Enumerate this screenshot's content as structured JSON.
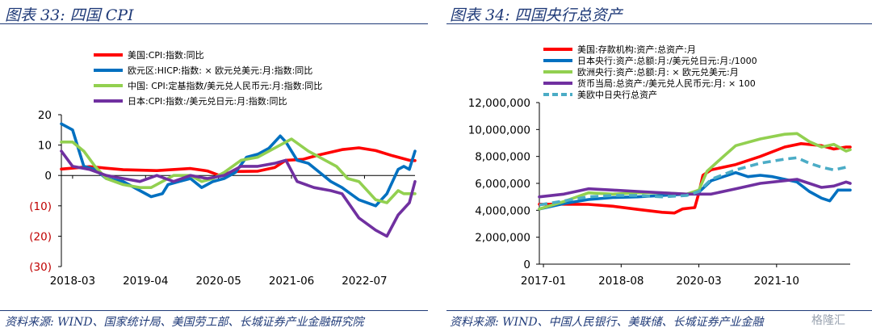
{
  "left_title": "图表 33:  四国 CPI",
  "right_title": "图表 34:  四国央行总资产",
  "left_source": "资料来源: WIND、国家统计局、美国劳工部、长城证券产业金融研究院",
  "right_source": "资料来源: WIND、中国人民银行、美联储、长城证券产业金融",
  "watermark": "格隆汇",
  "chart_data": [
    {
      "type": "line",
      "title": "图表 33:  四国 CPI",
      "x_tick_labels": [
        "2018-03",
        "2019-04",
        "2020-05",
        "2021-06",
        "2022-07"
      ],
      "x_range": [
        "2018-01",
        "2023-04"
      ],
      "ylim": [
        -30,
        20
      ],
      "y_ticks": [
        20,
        10,
        0,
        -10,
        -20,
        -30
      ],
      "y_tick_labels": [
        "20",
        "10",
        "0",
        "(10)",
        "(20)",
        "(30)"
      ],
      "grid": false,
      "legend_position": "top",
      "colors": {
        "us": "#ff0000",
        "eu": "#0070c0",
        "cn": "#92d050",
        "jp": "#7030a0"
      },
      "series": [
        {
          "name": "美国:CPI:指数:同比",
          "key": "us",
          "points": [
            [
              "2018-01",
              2.1
            ],
            [
              "2018-06",
              2.9
            ],
            [
              "2018-12",
              1.9
            ],
            [
              "2019-06",
              1.6
            ],
            [
              "2019-12",
              2.3
            ],
            [
              "2020-03",
              1.5
            ],
            [
              "2020-05",
              0.1
            ],
            [
              "2020-08",
              1.3
            ],
            [
              "2020-12",
              1.4
            ],
            [
              "2021-03",
              2.6
            ],
            [
              "2021-05",
              5.0
            ],
            [
              "2021-08",
              5.3
            ],
            [
              "2021-11",
              6.8
            ],
            [
              "2022-03",
              8.5
            ],
            [
              "2022-06",
              9.1
            ],
            [
              "2022-09",
              8.2
            ],
            [
              "2022-12",
              6.5
            ],
            [
              "2023-03",
              5.0
            ],
            [
              "2023-04",
              4.9
            ]
          ]
        },
        {
          "name": "欧元区:HICP:指数: × 欧元兑美元:月:指数:同比",
          "key": "eu",
          "points": [
            [
              "2018-01",
              17
            ],
            [
              "2018-03",
              15
            ],
            [
              "2018-05",
              3
            ],
            [
              "2018-07",
              2
            ],
            [
              "2018-09",
              -1
            ],
            [
              "2018-12",
              -2
            ],
            [
              "2019-03",
              -5
            ],
            [
              "2019-05",
              -7
            ],
            [
              "2019-07",
              -6
            ],
            [
              "2019-08",
              -3
            ],
            [
              "2019-10",
              -2
            ],
            [
              "2019-12",
              -1
            ],
            [
              "2020-02",
              -4
            ],
            [
              "2020-04",
              -2
            ],
            [
              "2020-06",
              -1
            ],
            [
              "2020-08",
              1
            ],
            [
              "2020-10",
              6
            ],
            [
              "2020-12",
              7
            ],
            [
              "2021-02",
              9
            ],
            [
              "2021-04",
              13
            ],
            [
              "2021-05",
              11
            ],
            [
              "2021-07",
              5
            ],
            [
              "2021-09",
              4
            ],
            [
              "2021-11",
              1
            ],
            [
              "2022-01",
              -2
            ],
            [
              "2022-03",
              -4
            ],
            [
              "2022-06",
              -8
            ],
            [
              "2022-09",
              -10
            ],
            [
              "2022-11",
              -6
            ],
            [
              "2023-01",
              2
            ],
            [
              "2023-02",
              3
            ],
            [
              "2023-03",
              2
            ],
            [
              "2023-04",
              8
            ]
          ]
        },
        {
          "name": "中国: CPI:定基指数/美元兑人民币元:月:指数:同比",
          "key": "cn",
          "points": [
            [
              "2018-01",
              11
            ],
            [
              "2018-03",
              11
            ],
            [
              "2018-05",
              8
            ],
            [
              "2018-07",
              3
            ],
            [
              "2018-09",
              -1
            ],
            [
              "2018-12",
              -3
            ],
            [
              "2019-03",
              -4
            ],
            [
              "2019-05",
              -4
            ],
            [
              "2019-07",
              -2
            ],
            [
              "2019-09",
              0
            ],
            [
              "2019-12",
              0
            ],
            [
              "2020-02",
              -2
            ],
            [
              "2020-04",
              -1
            ],
            [
              "2020-06",
              1
            ],
            [
              "2020-09",
              5
            ],
            [
              "2020-12",
              6
            ],
            [
              "2021-02",
              8
            ],
            [
              "2021-04",
              10
            ],
            [
              "2021-06",
              12
            ],
            [
              "2021-09",
              8
            ],
            [
              "2021-12",
              5
            ],
            [
              "2022-02",
              3
            ],
            [
              "2022-04",
              -1
            ],
            [
              "2022-06",
              -2
            ],
            [
              "2022-09",
              -8
            ],
            [
              "2022-11",
              -9
            ],
            [
              "2023-01",
              -5
            ],
            [
              "2023-02",
              -6
            ],
            [
              "2023-04",
              -6
            ]
          ]
        },
        {
          "name": "日本:CPI:指数:/美元兑日元:月:指数:同比",
          "key": "jp",
          "points": [
            [
              "2018-01",
              8
            ],
            [
              "2018-03",
              3
            ],
            [
              "2018-06",
              2
            ],
            [
              "2018-09",
              0
            ],
            [
              "2018-12",
              -1
            ],
            [
              "2019-03",
              -2
            ],
            [
              "2019-06",
              0
            ],
            [
              "2019-09",
              -2
            ],
            [
              "2019-12",
              0
            ],
            [
              "2020-03",
              -1
            ],
            [
              "2020-06",
              0
            ],
            [
              "2020-09",
              3
            ],
            [
              "2020-12",
              3
            ],
            [
              "2021-03",
              4
            ],
            [
              "2021-05",
              5
            ],
            [
              "2021-07",
              -2
            ],
            [
              "2021-10",
              -4
            ],
            [
              "2022-01",
              -5
            ],
            [
              "2022-03",
              -6
            ],
            [
              "2022-06",
              -14
            ],
            [
              "2022-09",
              -18
            ],
            [
              "2022-11",
              -20
            ],
            [
              "2023-01",
              -13
            ],
            [
              "2023-03",
              -9
            ],
            [
              "2023-04",
              -2
            ]
          ]
        }
      ]
    },
    {
      "type": "line",
      "title": "图表 34:  四国央行总资产",
      "x_tick_labels": [
        "2017-01",
        "2018-08",
        "2020-03",
        "2021-10"
      ],
      "x_range": [
        "2016-12",
        "2023-04"
      ],
      "ylim": [
        0,
        12000000
      ],
      "y_ticks": [
        12000000,
        10000000,
        8000000,
        6000000,
        4000000,
        2000000,
        0
      ],
      "y_tick_labels": [
        "12,000,000",
        "10,000,000",
        "8,000,000",
        "6,000,000",
        "4,000,000",
        "2,000,000",
        "0"
      ],
      "grid": false,
      "legend_position": "top-left",
      "colors": {
        "fed": "#ff0000",
        "boj": "#0070c0",
        "ecb": "#92d050",
        "pboc": "#7030a0",
        "total": "#4bacc6"
      },
      "series": [
        {
          "name": "美国:存款机构:资产:总资产:月",
          "key": "fed",
          "points": [
            [
              "2016-12",
              4450000
            ],
            [
              "2017-06",
              4450000
            ],
            [
              "2017-12",
              4440000
            ],
            [
              "2018-06",
              4300000
            ],
            [
              "2018-12",
              4070000
            ],
            [
              "2019-06",
              3850000
            ],
            [
              "2019-09",
              3800000
            ],
            [
              "2019-11",
              4100000
            ],
            [
              "2020-01",
              4170000
            ],
            [
              "2020-02",
              4200000
            ],
            [
              "2020-03",
              5300000
            ],
            [
              "2020-04",
              6600000
            ],
            [
              "2020-06",
              7000000
            ],
            [
              "2020-12",
              7400000
            ],
            [
              "2021-06",
              8000000
            ],
            [
              "2021-12",
              8700000
            ],
            [
              "2022-04",
              8950000
            ],
            [
              "2022-09",
              8800000
            ],
            [
              "2022-12",
              8550000
            ],
            [
              "2023-03",
              8700000
            ],
            [
              "2023-04",
              8700000
            ]
          ]
        },
        {
          "name": "日本央行:资产:总额:月:/美元兑日元:月:/1000",
          "key": "boj",
          "points": [
            [
              "2016-12",
              4100000
            ],
            [
              "2017-06",
              4500000
            ],
            [
              "2017-12",
              4800000
            ],
            [
              "2018-06",
              4950000
            ],
            [
              "2018-12",
              5000000
            ],
            [
              "2019-06",
              5100000
            ],
            [
              "2019-12",
              5200000
            ],
            [
              "2020-03",
              5350000
            ],
            [
              "2020-06",
              6200000
            ],
            [
              "2020-12",
              6800000
            ],
            [
              "2021-03",
              6500000
            ],
            [
              "2021-06",
              6600000
            ],
            [
              "2021-09",
              6500000
            ],
            [
              "2021-12",
              6300000
            ],
            [
              "2022-03",
              6100000
            ],
            [
              "2022-06",
              5400000
            ],
            [
              "2022-09",
              4900000
            ],
            [
              "2022-11",
              4700000
            ],
            [
              "2023-01",
              5500000
            ],
            [
              "2023-04",
              5500000
            ]
          ]
        },
        {
          "name": "欧洲央行:资产:总额:月: × 欧元兑美元:月",
          "key": "ecb",
          "points": [
            [
              "2016-12",
              4100000
            ],
            [
              "2017-06",
              4650000
            ],
            [
              "2017-12",
              5300000
            ],
            [
              "2018-06",
              5200000
            ],
            [
              "2018-12",
              5300000
            ],
            [
              "2019-06",
              5300000
            ],
            [
              "2019-12",
              5200000
            ],
            [
              "2020-03",
              5500000
            ],
            [
              "2020-05",
              6900000
            ],
            [
              "2020-09",
              8000000
            ],
            [
              "2020-12",
              8800000
            ],
            [
              "2021-06",
              9300000
            ],
            [
              "2021-12",
              9650000
            ],
            [
              "2022-03",
              9700000
            ],
            [
              "2022-06",
              9100000
            ],
            [
              "2022-09",
              8700000
            ],
            [
              "2022-12",
              8900000
            ],
            [
              "2023-03",
              8400000
            ],
            [
              "2023-04",
              8500000
            ]
          ]
        },
        {
          "name": "货币当局:总资产:/美元兑人民币元:月: × 100",
          "key": "pboc",
          "points": [
            [
              "2016-12",
              5000000
            ],
            [
              "2017-06",
              5200000
            ],
            [
              "2017-12",
              5600000
            ],
            [
              "2018-06",
              5500000
            ],
            [
              "2018-12",
              5400000
            ],
            [
              "2019-06",
              5300000
            ],
            [
              "2019-12",
              5200000
            ],
            [
              "2020-06",
              5200000
            ],
            [
              "2020-12",
              5600000
            ],
            [
              "2021-06",
              6000000
            ],
            [
              "2021-12",
              6200000
            ],
            [
              "2022-03",
              6300000
            ],
            [
              "2022-06",
              6000000
            ],
            [
              "2022-09",
              5700000
            ],
            [
              "2022-12",
              5800000
            ],
            [
              "2023-03",
              6100000
            ],
            [
              "2023-04",
              6000000
            ]
          ]
        },
        {
          "name": "美欧中日央行总资产",
          "key": "total",
          "dashed": true,
          "points": [
            [
              "2016-12",
              4400000
            ],
            [
              "2017-06",
              4700000
            ],
            [
              "2017-12",
              5000000
            ],
            [
              "2018-06",
              5100000
            ],
            [
              "2018-12",
              5100000
            ],
            [
              "2019-06",
              5000000
            ],
            [
              "2019-12",
              5100000
            ],
            [
              "2020-03",
              5400000
            ],
            [
              "2020-06",
              6300000
            ],
            [
              "2020-12",
              7000000
            ],
            [
              "2021-06",
              7500000
            ],
            [
              "2021-12",
              7800000
            ],
            [
              "2022-03",
              7900000
            ],
            [
              "2022-06",
              7500000
            ],
            [
              "2022-09",
              7200000
            ],
            [
              "2022-12",
              7000000
            ],
            [
              "2023-03",
              7200000
            ],
            [
              "2023-04",
              7200000
            ]
          ]
        }
      ]
    }
  ]
}
